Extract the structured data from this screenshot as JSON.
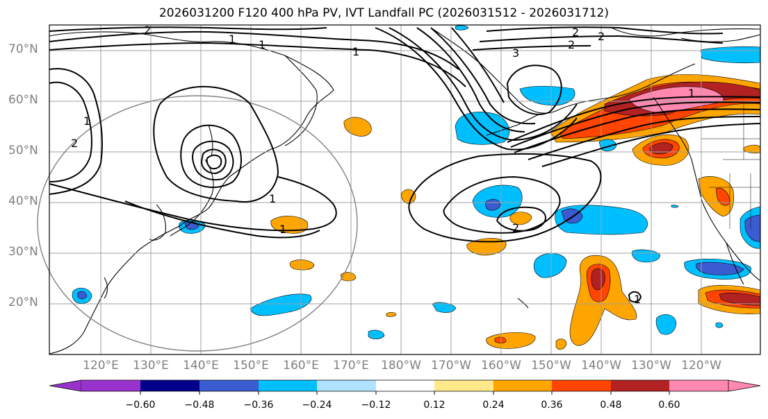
{
  "title": "2026031200 F120 400 hPa PV, IVT Landfall PC (2026031512 - 2026031712)",
  "map": {
    "lat_labels": [
      "70°N",
      "60°N",
      "50°N",
      "40°N",
      "30°N",
      "20°N"
    ],
    "lon_labels": [
      "120°E",
      "130°E",
      "140°E",
      "150°E",
      "160°E",
      "170°E",
      "180°W",
      "170°W",
      "160°W",
      "150°W",
      "140°W",
      "130°W",
      "120°W"
    ],
    "contour_labels": [
      "2",
      "1",
      "1",
      "2",
      "2",
      "2",
      "3",
      "1",
      "1",
      "2",
      "1",
      "1",
      "2",
      "1",
      "1"
    ],
    "gridlines": true
  },
  "colorbar": {
    "ticks": [
      "−0.60",
      "−0.48",
      "−0.36",
      "−0.24",
      "−0.12",
      "0.12",
      "0.24",
      "0.36",
      "0.48",
      "0.60"
    ],
    "colors": [
      "#9932cc",
      "#00008b",
      "#3b5bd1",
      "#00bfff",
      "#b0e2ff",
      "#ffffff",
      "#ffe98a",
      "#ffa500",
      "#ff4500",
      "#b22222",
      "#ff88b0"
    ],
    "extend": "both"
  }
}
